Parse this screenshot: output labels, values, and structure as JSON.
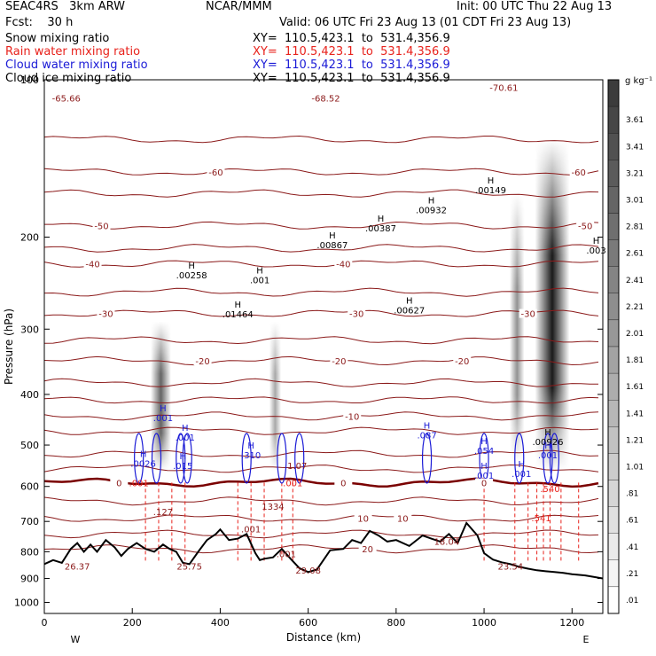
{
  "header": {
    "model": "SEAC4RS   3km ARW",
    "center": "NCAR/MMM",
    "init": "Init: 00 UTC Thu 22 Aug 13",
    "fcst": "Fcst:    30 h",
    "valid": "Valid: 06 UTC Fri 23 Aug 13 (01 CDT Fri 23 Aug 13)"
  },
  "fields": [
    {
      "name": "Snow mixing ratio",
      "xy": "XY=  110.5,423.1  to  531.4,356.9",
      "color": "#000000"
    },
    {
      "name": "Rain water mixing ratio",
      "xy": "XY=  110.5,423.1  to  531.4,356.9",
      "color": "#e8221c"
    },
    {
      "name": "Cloud water mixing ratio",
      "xy": "XY=  110.5,423.1  to  531.4,356.9",
      "color": "#1a1ad6"
    },
    {
      "name": "Cloud ice mixing ratio",
      "xy": "XY=  110.5,423.1  to  531.4,356.9",
      "color": "#000000"
    }
  ],
  "colorbar": {
    "unit": "g kg⁻¹",
    "labels": [
      "3.61",
      "3.41",
      "3.21",
      "3.01",
      "2.81",
      "2.61",
      "2.41",
      "2.21",
      "2.01",
      "1.81",
      "1.61",
      "1.41",
      "1.21",
      "1.01",
      ".81",
      ".61",
      ".41",
      ".21",
      ".01"
    ]
  },
  "chart_data": {
    "type": "cross-section contour",
    "xlabel": "Distance (km)",
    "ylabel": "Pressure (hPa)",
    "xlim": [
      0,
      1270
    ],
    "ylim": [
      1050,
      100
    ],
    "y_scale": "log",
    "x_ticks": [
      0,
      200,
      400,
      600,
      800,
      1000,
      1200
    ],
    "y_ticks": [
      100,
      200,
      300,
      400,
      500,
      600,
      700,
      800,
      900,
      1000
    ],
    "x_ends": {
      "left": "W",
      "right": "E"
    },
    "colors": {
      "temperature": "#8b1a1a",
      "freezing": "#7a0000",
      "terrain": "#000000",
      "rain": "#e8221c",
      "cloud": "#1a1ad6"
    },
    "temperature_contours": [
      {
        "label": "-60",
        "p": 150,
        "lx": [
          390,
          1215
        ]
      },
      {
        "label": "-50",
        "p": 190,
        "lx": [
          130,
          1230
        ]
      },
      {
        "label": "-40",
        "p": 225,
        "lx": [
          110,
          680
        ]
      },
      {
        "label": "-30",
        "p": 280,
        "lx": [
          140,
          710,
          1100
        ]
      },
      {
        "label": "-20",
        "p": 345,
        "lx": [
          360,
          670,
          950
        ]
      },
      {
        "label": "-10",
        "p": 440,
        "lx": [
          700
        ]
      },
      {
        "label": "0",
        "p": 590,
        "lx": [
          170,
          680,
          1000
        ]
      },
      {
        "label": "10",
        "p": 690,
        "lx": [
          725,
          815
        ]
      },
      {
        "label": "20",
        "p": 790,
        "lx": [
          735
        ]
      }
    ],
    "extrema_labels": [
      {
        "text": "-65.66",
        "x": 50,
        "p": 110
      },
      {
        "text": "-68.52",
        "x": 640,
        "p": 110
      },
      {
        "text": "-70.61",
        "x": 1045,
        "p": 105
      },
      {
        "text": "26.37",
        "x": 75,
        "p": 865
      },
      {
        "text": "25.75",
        "x": 330,
        "p": 865
      },
      {
        "text": "29.08",
        "x": 600,
        "p": 880
      },
      {
        "text": "18.04",
        "x": 915,
        "p": 775
      },
      {
        "text": "23.54",
        "x": 1060,
        "p": 865
      },
      {
        "text": ".127",
        "x": 270,
        "p": 680
      },
      {
        "text": "1334",
        "x": 520,
        "p": 665
      },
      {
        "text": ".001",
        "x": 470,
        "p": 735
      },
      {
        "text": ".001",
        "x": 550,
        "p": 820
      },
      {
        "text": "1.07",
        "x": 575,
        "p": 555
      }
    ],
    "ice_maxima": [
      {
        "value": ".00258",
        "x": 335,
        "p": 240
      },
      {
        "value": ".001",
        "x": 490,
        "p": 245
      },
      {
        "value": ".01464",
        "x": 440,
        "p": 285
      },
      {
        "value": ".00867",
        "x": 655,
        "p": 210
      },
      {
        "value": ".00387",
        "x": 765,
        "p": 195
      },
      {
        "value": ".00932",
        "x": 880,
        "p": 180
      },
      {
        "value": ".00149",
        "x": 1015,
        "p": 165
      },
      {
        "value": ".00627",
        "x": 830,
        "p": 280
      },
      {
        "value": ".00926",
        "x": 1145,
        "p": 500
      },
      {
        "value": ".003",
        "x": 1255,
        "p": 215
      }
    ],
    "cloud_maxima": [
      {
        "value": ".001",
        "x": 270,
        "p": 450
      },
      {
        "value": ".001",
        "x": 320,
        "p": 490
      },
      {
        "value": ".310",
        "x": 470,
        "p": 530
      },
      {
        "value": ".087",
        "x": 870,
        "p": 485
      },
      {
        "value": ".054",
        "x": 1000,
        "p": 520
      },
      {
        "value": ".001",
        "x": 1085,
        "p": 575
      },
      {
        "value": ".0026",
        "x": 225,
        "p": 550
      },
      {
        "value": ".015",
        "x": 315,
        "p": 555
      },
      {
        "value": ".001",
        "x": 1000,
        "p": 580
      },
      {
        "value": ".001",
        "x": 1145,
        "p": 530
      }
    ],
    "rain_maxima": [
      {
        "value": ".001",
        "x": 215,
        "p": 600
      },
      {
        "value": ".001",
        "x": 565,
        "p": 600
      },
      {
        "value": ".540",
        "x": 1150,
        "p": 615
      },
      {
        "value": ".541",
        "x": 1130,
        "p": 700
      }
    ],
    "snow_columns": [
      {
        "x": 265,
        "p_top": 290,
        "p_bottom": 560,
        "peak": 1.61
      },
      {
        "x": 525,
        "p_top": 290,
        "p_bottom": 560,
        "peak": 0.41
      },
      {
        "x": 1155,
        "p_top": 130,
        "p_bottom": 560,
        "peak": 3.61
      },
      {
        "x": 1075,
        "p_top": 165,
        "p_bottom": 540,
        "peak": 0.81
      }
    ],
    "terrain": {
      "x": [
        0,
        20,
        40,
        60,
        75,
        90,
        105,
        120,
        140,
        160,
        175,
        190,
        210,
        230,
        250,
        270,
        285,
        300,
        315,
        330,
        350,
        370,
        390,
        400,
        420,
        440,
        460,
        480,
        490,
        500,
        520,
        540,
        560,
        580,
        600,
        620,
        650,
        680,
        700,
        720,
        740,
        760,
        780,
        800,
        830,
        860,
        880,
        900,
        920,
        940,
        960,
        985,
        1000,
        1020,
        1040,
        1060,
        1080,
        1100,
        1120,
        1140,
        1160,
        1180,
        1200,
        1230,
        1270
      ],
      "p": [
        845,
        830,
        840,
        790,
        770,
        800,
        775,
        800,
        760,
        785,
        815,
        790,
        770,
        790,
        800,
        775,
        790,
        800,
        840,
        845,
        800,
        760,
        740,
        725,
        760,
        755,
        740,
        805,
        830,
        825,
        820,
        790,
        825,
        860,
        875,
        865,
        795,
        790,
        760,
        770,
        730,
        745,
        765,
        760,
        780,
        745,
        755,
        765,
        740,
        770,
        705,
        745,
        805,
        828,
        838,
        845,
        855,
        862,
        868,
        872,
        875,
        878,
        883,
        888,
        900
      ]
    }
  }
}
